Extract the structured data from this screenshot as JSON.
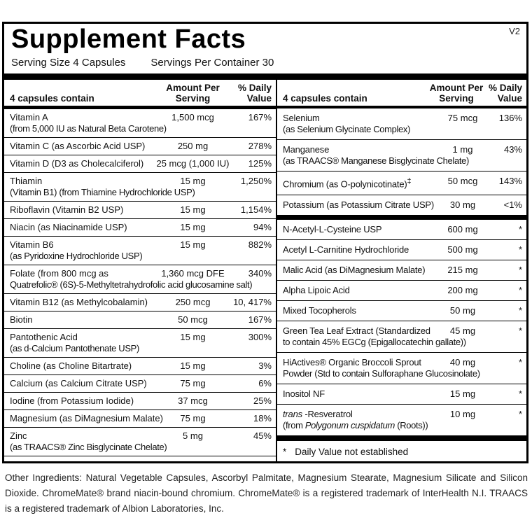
{
  "version_tag": "V2",
  "title": "Supplement Facts",
  "serving": {
    "size_label": "Serving Size 4 Capsules",
    "per_container_label": "Servings Per Container 30"
  },
  "table_header": {
    "contain": "4 capsules contain",
    "amount": "Amount Per Serving",
    "dv": "% Daily Value"
  },
  "left": {
    "rows": [
      {
        "name": "Vitamin A",
        "sub": "(from 5,000 IU as Natural Beta Carotene)",
        "amount": "1,500 mcg",
        "dv": "167%"
      },
      {
        "name": "Vitamin C (as Ascorbic Acid USP)",
        "amount": "250 mg",
        "dv": "278%"
      },
      {
        "name": "Vitamin D (D3 as Cholecalciferol)",
        "amount": "25 mcg (1,000 IU)",
        "dv": "125%"
      },
      {
        "name": "Thiamin",
        "sub": "(Vitamin B1) (from Thiamine Hydrochloride USP)",
        "amount": "15 mg",
        "dv": "1,250%"
      },
      {
        "name": "Riboflavin (Vitamin B2 USP)",
        "amount": "15 mg",
        "dv": "1,154%"
      },
      {
        "name": "Niacin (as Niacinamide USP)",
        "amount": "15 mg",
        "dv": "94%"
      },
      {
        "name": "Vitamin B6",
        "sub": "(as Pyridoxine Hydrochloride USP)",
        "amount": "15 mg",
        "dv": "882%"
      },
      {
        "name": "Folate (from 800 mcg as",
        "sub": "Quatrefolic® (6S)-5-Methyltetrahydrofolic acid glucosamine salt)",
        "amount": "1,360 mcg DFE",
        "dv": "340%"
      },
      {
        "name": "Vitamin B12 (as Methylcobalamin)",
        "amount": "250 mcg",
        "dv": "10, 417%"
      },
      {
        "name": "Biotin",
        "amount": "50 mcg",
        "dv": "167%"
      },
      {
        "name": "Pantothenic Acid",
        "sub": "(as d-Calcium Pantothenate USP)",
        "amount": "15 mg",
        "dv": "300%"
      },
      {
        "name": "Choline (as Choline Bitartrate)",
        "amount": "15 mg",
        "dv": "3%"
      },
      {
        "name": "Calcium (as Calcium Citrate USP)",
        "amount": "75 mg",
        "dv": "6%"
      },
      {
        "name": "Iodine (from Potassium Iodide)",
        "amount": "37 mcg",
        "dv": "25%"
      },
      {
        "name": "Magnesium (as DiMagnesium Malate)",
        "amount": "75 mg",
        "dv": "18%"
      },
      {
        "name": "Zinc",
        "sub": "(as TRAACS® Zinc Bisglycinate Chelate)",
        "amount": "5 mg",
        "dv": "45%"
      }
    ]
  },
  "right": {
    "mineral_rows": [
      {
        "name": "Selenium",
        "sub": "(as Selenium Glycinate Complex)",
        "amount": "75 mcg",
        "dv": "136%"
      },
      {
        "name": "Manganese",
        "sub": "(as TRAACS® Manganese Bisglycinate Chelate)",
        "amount": "1 mg",
        "dv": "43%"
      },
      {
        "name_html": "Chromium (as O-polynicotinate)<sup>‡</sup>",
        "amount": "50 mcg",
        "dv": "143%"
      },
      {
        "name": "Potassium (as Potassium Citrate USP)",
        "amount": "30 mg",
        "dv": "<1%"
      }
    ],
    "other_rows": [
      {
        "name": "N-Acetyl-L-Cysteine USP",
        "amount": "600 mg",
        "dv": "*"
      },
      {
        "name": "Acetyl L-Carnitine Hydrochloride",
        "amount": "500 mg",
        "dv": "*"
      },
      {
        "name": "Malic Acid (as DiMagnesium Malate)",
        "amount": "215 mg",
        "dv": "*"
      },
      {
        "name": "Alpha Lipoic Acid",
        "amount": "200 mg",
        "dv": "*"
      },
      {
        "name": "Mixed Tocopherols",
        "amount": "50 mg",
        "dv": "*"
      },
      {
        "name": "Green Tea Leaf Extract (Standardized",
        "sub": "to contain 45% EGCg (Epigallocatechin gallate))",
        "amount": "45 mg",
        "dv": "*"
      },
      {
        "name": "HiActives® Organic Broccoli Sprout",
        "sub": "Powder (Std to contain Sulforaphane Glucosinolate)",
        "amount": "40 mg",
        "dv": "*"
      },
      {
        "name": "Inositol NF",
        "amount": "15 mg",
        "dv": "*"
      },
      {
        "name_html": "<i>trans</i> -Resveratrol",
        "sub_html": "(from <i>Polygonum cuspidatum</i> (Roots))",
        "amount": "10 mg",
        "dv": "*"
      }
    ],
    "footnote_marker": "*",
    "footnote_text": "Daily Value not established"
  },
  "other_ingredients": "Other Ingredients: Natural Vegetable Capsules, Ascorbyl Palmitate, Magnesium Stearate, Magnesium Silicate and Silicon Dioxide. ChromeMate® brand niacin-bound chromium. ChromeMate® is a registered trademark of InterHealth N.I. TRAACS is a registered trademark of Albion Laboratories, Inc."
}
